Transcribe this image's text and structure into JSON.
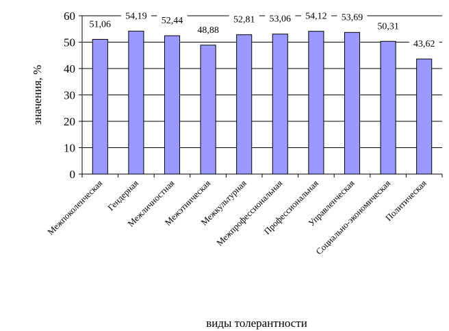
{
  "chart_data": {
    "type": "bar",
    "xlabel": "виды толерантности",
    "ylabel": "значения, %",
    "ylim": [
      0,
      60
    ],
    "yticks": [
      0,
      10,
      20,
      30,
      40,
      50,
      60
    ],
    "grid": "horizontal",
    "categories": [
      "Межпоколенческая",
      "Гендерная",
      "Межличностная",
      "Межэтническая",
      "Межкультурная",
      "Межпрофессиональная",
      "Профессиональная",
      "Управленческая",
      "Социально-экономическая",
      "Политическая"
    ],
    "values": [
      51.06,
      54.19,
      52.44,
      48.88,
      52.81,
      53.06,
      54.12,
      53.69,
      50.31,
      43.62
    ],
    "value_labels": [
      "51,06",
      "54,19",
      "52,44",
      "48,88",
      "52,81",
      "53,06",
      "54,12",
      "53,69",
      "50,31",
      "43,62"
    ],
    "bar_color": "#9999ff",
    "bar_outline": "#000000"
  }
}
